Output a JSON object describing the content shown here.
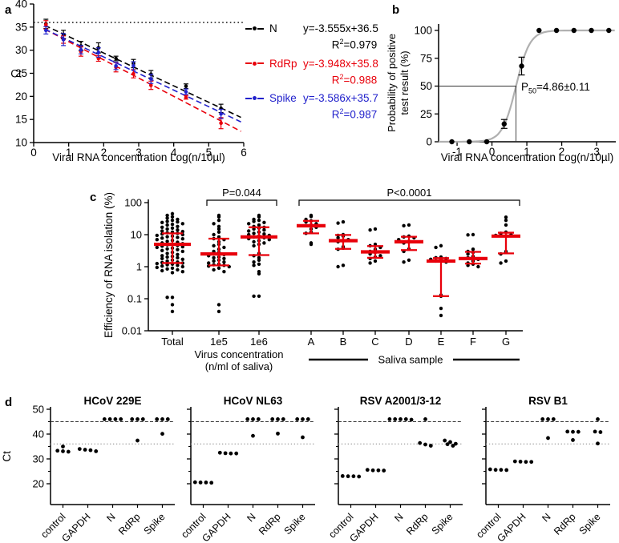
{
  "panel_labels": {
    "a": "a",
    "b": "b",
    "c": "c",
    "d": "d"
  },
  "colors": {
    "black": "#000000",
    "red": "#e8000b",
    "blue": "#2222cc",
    "curve_gray": "#b0b0b0",
    "dashed_gray": "#3a3a3a",
    "dotted_gray": "#9a9a9a"
  },
  "chart_data": [
    {
      "panel": "a",
      "type": "scatter",
      "xlabel": "Viral RNA concentration Log(n/10µl)",
      "ylabel": "Ct",
      "xlim": [
        0,
        6
      ],
      "ylim": [
        10,
        40
      ],
      "xticks": [
        0,
        1,
        2,
        3,
        4,
        5,
        6
      ],
      "yticks": [
        10,
        15,
        20,
        25,
        30,
        35,
        40
      ],
      "cutoff_line_y": 36,
      "x": [
        0.35,
        0.85,
        1.35,
        1.85,
        2.35,
        2.85,
        3.35,
        4.35,
        5.35
      ],
      "series": [
        {
          "name": "N",
          "color": "#000000",
          "y": [
            35.7,
            33.4,
            30.9,
            30.5,
            28.2,
            27.1,
            24.8,
            22.2,
            17.4
          ],
          "err": [
            1.0,
            0.9,
            1.0,
            1.1,
            0.5,
            0.9,
            0.8,
            0.5,
            0.9
          ],
          "fit": {
            "slope": -3.555,
            "intercept": 36.5
          },
          "equation": "y=-3.555x+36.5",
          "r2": "0.979"
        },
        {
          "name": "RdRp",
          "color": "#e8000b",
          "y": [
            35.5,
            32.3,
            29.7,
            28.2,
            26.3,
            24.9,
            22.4,
            19.8,
            14.2
          ],
          "err": [
            0.9,
            0.8,
            1.0,
            0.6,
            1.0,
            0.9,
            0.9,
            0.4,
            1.2
          ],
          "fit": {
            "slope": -3.948,
            "intercept": 35.8
          },
          "equation": "y=-3.948x+35.8",
          "r2": "0.988"
        },
        {
          "name": "Spike",
          "color": "#2222cc",
          "y": [
            34.3,
            32.3,
            30.1,
            29.5,
            26.6,
            26.6,
            23.8,
            21.0,
            16.2
          ],
          "err": [
            0.8,
            1.3,
            0.9,
            1.0,
            0.8,
            0.9,
            1.0,
            0.6,
            1.0
          ],
          "fit": {
            "slope": -3.586,
            "intercept": 35.7
          },
          "equation": "y=-3.586x+35.7",
          "r2": "0.987"
        }
      ]
    },
    {
      "panel": "b",
      "type": "scatter",
      "xlabel": "Viral RNA concentration Log(n/10µl)",
      "ylabel_lines": [
        "Probability of positive",
        "test result (%)"
      ],
      "xlim": [
        -1.53,
        3.55
      ],
      "ylim": [
        0,
        110
      ],
      "xticks": [
        -1,
        0,
        1,
        2,
        3
      ],
      "yticks": [
        0,
        25,
        50,
        75,
        100
      ],
      "x": [
        -1.15,
        -0.65,
        -0.15,
        0.35,
        0.85,
        1.35,
        1.85,
        2.35,
        2.85,
        3.35
      ],
      "y": [
        0,
        0,
        0,
        16,
        68,
        100,
        100,
        100,
        100,
        100
      ],
      "err": [
        0,
        0,
        0,
        4,
        8,
        0,
        0,
        0,
        0,
        0
      ],
      "curve": {
        "type": "logistic",
        "midpoint": 0.69,
        "hillslope": 2.2,
        "max": 100
      },
      "annotation": {
        "text_prefix": "P",
        "text_sub": "50",
        "text_value": "=4.86±0.11",
        "x": 0.69,
        "y": 50
      }
    },
    {
      "panel": "c",
      "type": "scatter",
      "yscale": "log",
      "ylabel": "Efficiency of RNA isolation (%)",
      "ylim": [
        0.01,
        100
      ],
      "yticks": [
        100,
        10,
        1,
        0.1,
        0.01
      ],
      "ytick_labels": [
        "100",
        "10",
        "1",
        "0.1",
        "0.01"
      ],
      "groups": [
        {
          "name": "Total",
          "median": 5,
          "q1": 1.3,
          "q3": 11,
          "values": [
            45,
            40,
            36,
            33,
            30,
            28,
            26,
            25,
            24,
            22,
            21,
            20,
            18,
            17,
            16,
            15,
            14,
            13,
            12.5,
            12,
            11.5,
            11,
            10.5,
            10,
            9.5,
            9,
            8.6,
            8.2,
            7.8,
            7.4,
            7,
            6.6,
            6.2,
            5.8,
            5.5,
            5.2,
            5,
            4.8,
            4.6,
            4.4,
            4.2,
            4,
            3.8,
            3.6,
            3.4,
            3.2,
            3,
            2.8,
            2.6,
            2.4,
            2.2,
            2.1,
            2,
            1.9,
            1.8,
            1.7,
            1.6,
            1.5,
            1.4,
            1.35,
            1.3,
            1.25,
            1.2,
            1.15,
            1.1,
            1.05,
            1,
            0.95,
            0.9,
            0.85,
            0.8,
            0.75,
            0.7,
            0.65,
            0.11,
            0.11,
            0.065,
            0.04
          ]
        },
        {
          "name": "1e5",
          "median": 2.5,
          "q1": 1.1,
          "q3": 7.5,
          "values": [
            40,
            36,
            28,
            22,
            18,
            15,
            12,
            10,
            8.5,
            7.5,
            7,
            6,
            5,
            4.5,
            4,
            3.5,
            3,
            2.8,
            2.6,
            2.4,
            2.2,
            2,
            1.9,
            1.8,
            1.6,
            1.5,
            1.4,
            1.3,
            1.2,
            1.15,
            1.1,
            1.05,
            1,
            0.9,
            0.8,
            0.7,
            0.065,
            0.04
          ]
        },
        {
          "name": "1e6",
          "median": 8.5,
          "q1": 2.3,
          "q3": 17,
          "values": [
            40,
            36,
            30,
            28,
            26,
            24,
            22,
            20,
            18,
            17,
            16,
            15,
            14,
            13,
            12,
            11,
            10.5,
            10,
            9.5,
            9,
            8.5,
            8,
            7.5,
            7,
            6.5,
            6,
            5.5,
            5,
            4.5,
            2.6,
            2.2,
            1.9,
            1.6,
            1.4,
            1.2,
            1.1,
            0.7,
            0.6,
            0.12,
            0.12
          ]
        },
        {
          "name": "A",
          "median": 19,
          "q1": 11,
          "q3": 27,
          "values": [
            40,
            37,
            30,
            27,
            25,
            22,
            20,
            19,
            17,
            15,
            12,
            11,
            5.5,
            5
          ]
        },
        {
          "name": "B",
          "median": 6.5,
          "q1": 3.6,
          "q3": 9.8,
          "values": [
            25,
            23,
            10,
            9.5,
            9,
            8,
            7,
            6.5,
            6,
            4.2,
            3.8,
            3.5,
            1.1,
            1
          ]
        },
        {
          "name": "C",
          "median": 2.9,
          "q1": 1.9,
          "q3": 4.4,
          "values": [
            15,
            14,
            5,
            4.5,
            4,
            3.5,
            3,
            2.8,
            2.5,
            2.2,
            2,
            1.8,
            1.5,
            1.3
          ]
        },
        {
          "name": "D",
          "median": 6.0,
          "q1": 3.3,
          "q3": 8.6,
          "values": [
            20,
            19,
            9,
            8.5,
            8,
            7,
            6.2,
            5.5,
            3.6,
            3,
            1.6,
            1.4
          ]
        },
        {
          "name": "E",
          "median": 1.5,
          "q1": 0.12,
          "q3": 1.85,
          "values": [
            4.5,
            4,
            2,
            1.9,
            1.8,
            1.7,
            1.6,
            1.5,
            1.4,
            0.13,
            0.12,
            0.05,
            0.03
          ]
        },
        {
          "name": "F",
          "median": 1.8,
          "q1": 1.25,
          "q3": 2.9,
          "values": [
            10,
            9.8,
            3.5,
            3,
            2.8,
            2.5,
            2.1,
            1.9,
            1.7,
            1.5,
            1.3,
            1.2,
            1.1,
            1
          ]
        },
        {
          "name": "G",
          "median": 9,
          "q1": 2.6,
          "q3": 11.5,
          "values": [
            35,
            28,
            20,
            12,
            11,
            10,
            9.5,
            9,
            3,
            2.8,
            2.5,
            1.5,
            1.3
          ]
        }
      ],
      "annotations": [
        {
          "text": "P=0.044",
          "from": 1,
          "to": 2
        },
        {
          "text": "P<0.0001",
          "from": 3,
          "to": 9
        }
      ],
      "axis_group_labels": {
        "virus_line1": "Virus concentration",
        "virus_line2": "(n/ml of saliva)",
        "saliva": "Saliva sample"
      }
    },
    {
      "panel": "d",
      "type": "scatter",
      "ylabel": "Ct",
      "categories": [
        "control",
        "GAPDH",
        "N",
        "RdRp",
        "Spike"
      ],
      "ylim": [
        15,
        50
      ],
      "yticks_major": [
        20,
        30,
        40,
        50
      ],
      "yticks_minor": [
        25,
        35,
        45
      ],
      "dashed_line_y": 45,
      "dotted_line_y": 36,
      "subpanels": [
        {
          "title": "HCoV 229E",
          "values": {
            "control": [
              33.3,
              33.1,
              35.0,
              32.9
            ],
            "GAPDH": [
              33.7,
              33.1,
              33.5,
              34.0
            ],
            "N": [
              46,
              46,
              46,
              46
            ],
            "RdRp": [
              46,
              46,
              46,
              37.4
            ],
            "Spike": [
              46,
              46,
              46,
              40.1
            ]
          }
        },
        {
          "title": "HCoV NL63",
          "values": {
            "control": [
              20.6,
              20.5,
              20.5,
              20.4
            ],
            "GAPDH": [
              32.5,
              32.2,
              32.3,
              32.2
            ],
            "N": [
              46,
              46,
              46,
              39.3
            ],
            "RdRp": [
              46,
              46,
              46,
              40.2
            ],
            "Spike": [
              46,
              46,
              46,
              38.7
            ]
          }
        },
        {
          "title": "RSV A2001/3-12",
          "values": {
            "control": [
              23.1,
              23.0,
              23.0,
              22.9
            ],
            "GAPDH": [
              25.6,
              25.4,
              25.4,
              25.3
            ],
            "N": [
              45.8,
              46,
              46,
              46,
              46
            ],
            "RdRp": [
              46,
              36.4,
              35.3,
              35.8
            ],
            "Spike": [
              37.4,
              36.8,
              36.1,
              35.3,
              35.9
            ]
          }
        },
        {
          "title": "RSV B1",
          "values": {
            "control": [
              25.8,
              25.6,
              25.6,
              25.5
            ],
            "GAPDH": [
              29.0,
              28.8,
              28.9,
              28.8
            ],
            "N": [
              46,
              46,
              46,
              38.4
            ],
            "RdRp": [
              40.9,
              41.0,
              40.9,
              37.6
            ],
            "Spike": [
              46,
              41.0,
              40.8,
              36.2
            ]
          }
        }
      ]
    }
  ]
}
